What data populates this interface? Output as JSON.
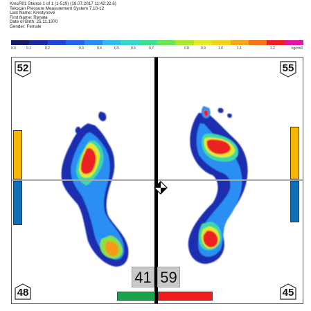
{
  "header": {
    "line1": "KresR01 Stance 1 of 1 (1-519) (19.07.2017 11:42:32.6)",
    "line2": "Tekscan Pressure Measurement System 7.10-12",
    "line3": "Last Name: Krestynové",
    "line4": "First Name: Renata",
    "line5": "Date of Birth: 25.11.1970",
    "line6": "Gender: Female"
  },
  "scale": {
    "colors": [
      "#151a6a",
      "#1b2c9e",
      "#1f47d6",
      "#2266ee",
      "#2b8cf2",
      "#35b7f0",
      "#39d4d0",
      "#3ee08e",
      "#69e651",
      "#a7e931",
      "#e3ea23",
      "#f6d21c",
      "#f7a51c",
      "#f4741b",
      "#ee2020",
      "#e414a8"
    ],
    "labels": [
      "0.0",
      "0.1",
      "0.2",
      "0.3",
      "0.4",
      "0.5",
      "0.6",
      "0.7",
      "0.8",
      "0.9",
      "1.0",
      "1.1",
      "1.2",
      "kg/cm2"
    ]
  },
  "panel": {
    "top_left": "52",
    "top_right": "55",
    "bottom_left": "48",
    "bottom_right": "45",
    "left_percent": "41",
    "right_percent": "59"
  },
  "colors": {
    "left_bar_top": "#f7b500",
    "left_bar_bottom": "#0f6eb5",
    "right_bar_top": "#f7b500",
    "right_bar_bottom": "#0f6eb5",
    "balance_left": "#1aa34a",
    "balance_right": "#ee1c1c"
  }
}
